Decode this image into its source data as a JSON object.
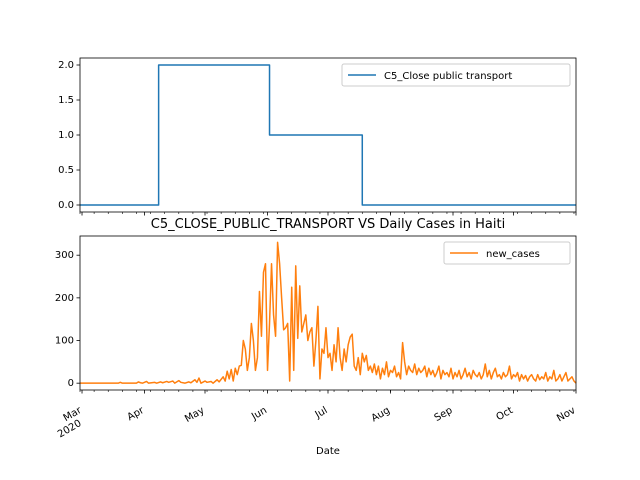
{
  "chart_data": [
    {
      "type": "line",
      "title": "",
      "xlabel": "",
      "ylabel": "",
      "x_range": [
        "2020-02-29",
        "2020-11-01"
      ],
      "ylim": [
        -0.1,
        2.1
      ],
      "yticks": [
        "0.0",
        "0.5",
        "1.0",
        "1.5",
        "2.0"
      ],
      "grid": false,
      "legend_position": "top-right",
      "series": [
        {
          "name": "C5_Close public transport",
          "color": "#1f77b4",
          "points": [
            [
              "2020-02-29",
              0
            ],
            [
              "2020-04-08",
              0
            ],
            [
              "2020-04-08",
              2
            ],
            [
              "2020-06-02",
              2
            ],
            [
              "2020-06-02",
              1
            ],
            [
              "2020-07-18",
              1
            ],
            [
              "2020-07-18",
              0
            ],
            [
              "2020-11-01",
              0
            ]
          ]
        }
      ]
    },
    {
      "type": "line",
      "title": "C5_CLOSE_PUBLIC_TRANSPORT VS Daily Cases in Haiti",
      "xlabel": "Date",
      "ylabel": "",
      "x_range": [
        "2020-02-29",
        "2020-11-01"
      ],
      "ylim": [
        -16,
        345
      ],
      "yticks": [
        "0",
        "100",
        "200",
        "300"
      ],
      "xticks": [
        {
          "label": "Mar",
          "sub": "2020",
          "date": "2020-03-01"
        },
        {
          "label": "Apr",
          "date": "2020-04-01"
        },
        {
          "label": "May",
          "date": "2020-05-01"
        },
        {
          "label": "Jun",
          "date": "2020-06-01"
        },
        {
          "label": "Jul",
          "date": "2020-07-01"
        },
        {
          "label": "Aug",
          "date": "2020-08-01"
        },
        {
          "label": "Sep",
          "date": "2020-09-01"
        },
        {
          "label": "Oct",
          "date": "2020-10-01"
        },
        {
          "label": "Nov",
          "date": "2020-11-01"
        }
      ],
      "grid": false,
      "legend_position": "top-right",
      "series": [
        {
          "name": "new_cases",
          "color": "#ff7f0e",
          "points": [
            [
              "2020-02-29",
              0
            ],
            [
              "2020-03-19",
              0
            ],
            [
              "2020-03-20",
              2
            ],
            [
              "2020-03-21",
              0
            ],
            [
              "2020-03-28",
              0
            ],
            [
              "2020-03-29",
              3
            ],
            [
              "2020-03-30",
              1
            ],
            [
              "2020-03-31",
              0
            ],
            [
              "2020-04-02",
              4
            ],
            [
              "2020-04-03",
              0
            ],
            [
              "2020-04-06",
              2
            ],
            [
              "2020-04-07",
              0
            ],
            [
              "2020-04-09",
              3
            ],
            [
              "2020-04-10",
              1
            ],
            [
              "2020-04-12",
              4
            ],
            [
              "2020-04-13",
              2
            ],
            [
              "2020-04-15",
              5
            ],
            [
              "2020-04-16",
              0
            ],
            [
              "2020-04-18",
              6
            ],
            [
              "2020-04-19",
              2
            ],
            [
              "2020-04-21",
              0
            ],
            [
              "2020-04-23",
              3
            ],
            [
              "2020-04-24",
              1
            ],
            [
              "2020-04-26",
              8
            ],
            [
              "2020-04-27",
              2
            ],
            [
              "2020-04-28",
              12
            ],
            [
              "2020-04-29",
              0
            ],
            [
              "2020-05-01",
              5
            ],
            [
              "2020-05-02",
              2
            ],
            [
              "2020-05-04",
              4
            ],
            [
              "2020-05-05",
              0
            ],
            [
              "2020-05-07",
              8
            ],
            [
              "2020-05-08",
              3
            ],
            [
              "2020-05-10",
              15
            ],
            [
              "2020-05-11",
              5
            ],
            [
              "2020-05-12",
              28
            ],
            [
              "2020-05-13",
              10
            ],
            [
              "2020-05-14",
              32
            ],
            [
              "2020-05-15",
              5
            ],
            [
              "2020-05-16",
              35
            ],
            [
              "2020-05-17",
              20
            ],
            [
              "2020-05-18",
              40
            ],
            [
              "2020-05-19",
              42
            ],
            [
              "2020-05-20",
              100
            ],
            [
              "2020-05-21",
              80
            ],
            [
              "2020-05-22",
              30
            ],
            [
              "2020-05-23",
              60
            ],
            [
              "2020-05-24",
              140
            ],
            [
              "2020-05-25",
              100
            ],
            [
              "2020-05-26",
              30
            ],
            [
              "2020-05-27",
              60
            ],
            [
              "2020-05-28",
              215
            ],
            [
              "2020-05-29",
              110
            ],
            [
              "2020-05-30",
              260
            ],
            [
              "2020-05-31",
              280
            ],
            [
              "2020-06-01",
              30
            ],
            [
              "2020-06-02",
              140
            ],
            [
              "2020-06-03",
              280
            ],
            [
              "2020-06-04",
              160
            ],
            [
              "2020-06-05",
              110
            ],
            [
              "2020-06-06",
              330
            ],
            [
              "2020-06-07",
              280
            ],
            [
              "2020-06-08",
              200
            ],
            [
              "2020-06-09",
              125
            ],
            [
              "2020-06-10",
              130
            ],
            [
              "2020-06-11",
              140
            ],
            [
              "2020-06-12",
              5
            ],
            [
              "2020-06-13",
              225
            ],
            [
              "2020-06-14",
              30
            ],
            [
              "2020-06-15",
              275
            ],
            [
              "2020-06-16",
              105
            ],
            [
              "2020-06-17",
              228
            ],
            [
              "2020-06-18",
              120
            ],
            [
              "2020-06-19",
              140
            ],
            [
              "2020-06-20",
              160
            ],
            [
              "2020-06-21",
              100
            ],
            [
              "2020-06-22",
              120
            ],
            [
              "2020-06-23",
              130
            ],
            [
              "2020-06-24",
              40
            ],
            [
              "2020-06-25",
              100
            ],
            [
              "2020-06-26",
              180
            ],
            [
              "2020-06-27",
              10
            ],
            [
              "2020-06-28",
              80
            ],
            [
              "2020-06-29",
              70
            ],
            [
              "2020-06-30",
              130
            ],
            [
              "2020-07-01",
              60
            ],
            [
              "2020-07-02",
              70
            ],
            [
              "2020-07-03",
              30
            ],
            [
              "2020-07-04",
              90
            ],
            [
              "2020-07-05",
              50
            ],
            [
              "2020-07-06",
              130
            ],
            [
              "2020-07-07",
              60
            ],
            [
              "2020-07-08",
              30
            ],
            [
              "2020-07-09",
              80
            ],
            [
              "2020-07-10",
              50
            ],
            [
              "2020-07-11",
              90
            ],
            [
              "2020-07-12",
              108
            ],
            [
              "2020-07-13",
              115
            ],
            [
              "2020-07-14",
              40
            ],
            [
              "2020-07-15",
              30
            ],
            [
              "2020-07-16",
              60
            ],
            [
              "2020-07-17",
              20
            ],
            [
              "2020-07-18",
              70
            ],
            [
              "2020-07-19",
              50
            ],
            [
              "2020-07-20",
              65
            ],
            [
              "2020-07-21",
              30
            ],
            [
              "2020-07-22",
              40
            ],
            [
              "2020-07-23",
              25
            ],
            [
              "2020-07-24",
              45
            ],
            [
              "2020-07-25",
              20
            ],
            [
              "2020-07-26",
              40
            ],
            [
              "2020-07-27",
              10
            ],
            [
              "2020-07-28",
              35
            ],
            [
              "2020-07-29",
              20
            ],
            [
              "2020-07-30",
              50
            ],
            [
              "2020-07-31",
              15
            ],
            [
              "2020-08-01",
              30
            ],
            [
              "2020-08-02",
              25
            ],
            [
              "2020-08-03",
              40
            ],
            [
              "2020-08-04",
              15
            ],
            [
              "2020-08-05",
              25
            ],
            [
              "2020-08-06",
              10
            ],
            [
              "2020-08-07",
              95
            ],
            [
              "2020-08-08",
              50
            ],
            [
              "2020-08-09",
              20
            ],
            [
              "2020-08-10",
              40
            ],
            [
              "2020-08-11",
              30
            ],
            [
              "2020-08-12",
              25
            ],
            [
              "2020-08-13",
              45
            ],
            [
              "2020-08-14",
              20
            ],
            [
              "2020-08-15",
              35
            ],
            [
              "2020-08-16",
              25
            ],
            [
              "2020-08-17",
              30
            ],
            [
              "2020-08-18",
              40
            ],
            [
              "2020-08-19",
              15
            ],
            [
              "2020-08-20",
              35
            ],
            [
              "2020-08-21",
              20
            ],
            [
              "2020-08-22",
              30
            ],
            [
              "2020-08-23",
              15
            ],
            [
              "2020-08-24",
              25
            ],
            [
              "2020-08-25",
              40
            ],
            [
              "2020-08-26",
              10
            ],
            [
              "2020-08-27",
              30
            ],
            [
              "2020-08-28",
              20
            ],
            [
              "2020-08-29",
              25
            ],
            [
              "2020-08-30",
              15
            ],
            [
              "2020-08-31",
              35
            ],
            [
              "2020-09-01",
              10
            ],
            [
              "2020-09-02",
              25
            ],
            [
              "2020-09-03",
              15
            ],
            [
              "2020-09-04",
              30
            ],
            [
              "2020-09-05",
              10
            ],
            [
              "2020-09-06",
              20
            ],
            [
              "2020-09-07",
              35
            ],
            [
              "2020-09-08",
              15
            ],
            [
              "2020-09-09",
              25
            ],
            [
              "2020-09-10",
              10
            ],
            [
              "2020-09-11",
              30
            ],
            [
              "2020-09-12",
              20
            ],
            [
              "2020-09-13",
              15
            ],
            [
              "2020-09-14",
              25
            ],
            [
              "2020-09-15",
              10
            ],
            [
              "2020-09-16",
              20
            ],
            [
              "2020-09-17",
              45
            ],
            [
              "2020-09-18",
              15
            ],
            [
              "2020-09-19",
              30
            ],
            [
              "2020-09-20",
              10
            ],
            [
              "2020-09-21",
              25
            ],
            [
              "2020-09-22",
              35
            ],
            [
              "2020-09-23",
              15
            ],
            [
              "2020-09-24",
              20
            ],
            [
              "2020-09-25",
              10
            ],
            [
              "2020-09-26",
              25
            ],
            [
              "2020-09-27",
              15
            ],
            [
              "2020-09-28",
              20
            ],
            [
              "2020-09-29",
              40
            ],
            [
              "2020-09-30",
              10
            ],
            [
              "2020-10-01",
              20
            ],
            [
              "2020-10-02",
              15
            ],
            [
              "2020-10-03",
              25
            ],
            [
              "2020-10-04",
              5
            ],
            [
              "2020-10-05",
              20
            ],
            [
              "2020-10-06",
              10
            ],
            [
              "2020-10-07",
              18
            ],
            [
              "2020-10-08",
              5
            ],
            [
              "2020-10-09",
              15
            ],
            [
              "2020-10-10",
              20
            ],
            [
              "2020-10-11",
              10
            ],
            [
              "2020-10-12",
              5
            ],
            [
              "2020-10-13",
              20
            ],
            [
              "2020-10-14",
              8
            ],
            [
              "2020-10-15",
              15
            ],
            [
              "2020-10-16",
              10
            ],
            [
              "2020-10-17",
              25
            ],
            [
              "2020-10-18",
              5
            ],
            [
              "2020-10-19",
              15
            ],
            [
              "2020-10-20",
              10
            ],
            [
              "2020-10-21",
              30
            ],
            [
              "2020-10-22",
              5
            ],
            [
              "2020-10-23",
              10
            ],
            [
              "2020-10-24",
              20
            ],
            [
              "2020-10-25",
              5
            ],
            [
              "2020-10-26",
              15
            ],
            [
              "2020-10-27",
              25
            ],
            [
              "2020-10-28",
              5
            ],
            [
              "2020-10-29",
              10
            ],
            [
              "2020-10-30",
              15
            ],
            [
              "2020-10-31",
              5
            ],
            [
              "2020-11-01",
              0
            ]
          ]
        }
      ]
    }
  ]
}
